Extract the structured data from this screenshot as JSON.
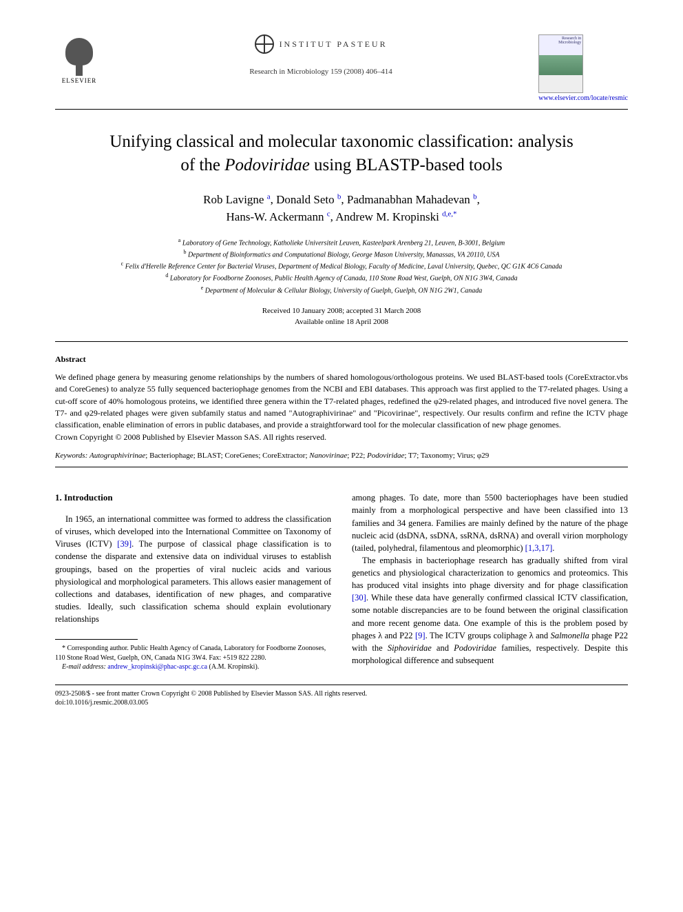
{
  "header": {
    "elsevier_label": "ELSEVIER",
    "pasteur_label": "INSTITUT PASTEUR",
    "journal_ref": "Research in Microbiology 159 (2008) 406–414",
    "journal_cover_title": "Research in Microbiology",
    "journal_link": "www.elsevier.com/locate/resmic"
  },
  "title": {
    "line1": "Unifying classical and molecular taxonomic classification: analysis",
    "line2_pre": "of the ",
    "line2_ital": "Podoviridae",
    "line2_post": " using BLASTP-based tools"
  },
  "authors": [
    {
      "name": "Rob Lavigne",
      "sup": "a"
    },
    {
      "name": "Donald Seto",
      "sup": "b"
    },
    {
      "name": "Padmanabhan Mahadevan",
      "sup": "b"
    },
    {
      "name": "Hans-W. Ackermann",
      "sup": "c"
    },
    {
      "name": "Andrew M. Kropinski",
      "sup": "d,e,*"
    }
  ],
  "affiliations": [
    {
      "sup": "a",
      "text": "Laboratory of Gene Technology, Katholieke Universiteit Leuven, Kasteelpark Arenberg 21, Leuven, B-3001, Belgium"
    },
    {
      "sup": "b",
      "text": "Department of Bioinformatics and Computational Biology, George Mason University, Manassas, VA 20110, USA"
    },
    {
      "sup": "c",
      "text": "Felix d'Herelle Reference Center for Bacterial Viruses, Department of Medical Biology, Faculty of Medicine, Laval University, Quebec, QC G1K 4C6 Canada"
    },
    {
      "sup": "d",
      "text": "Laboratory for Foodborne Zoonoses, Public Health Agency of Canada, 110 Stone Road West, Guelph, ON N1G 3W4, Canada"
    },
    {
      "sup": "e",
      "text": "Department of Molecular & Cellular Biology, University of Guelph, Guelph, ON N1G 2W1, Canada"
    }
  ],
  "dates": {
    "received": "Received 10 January 2008; accepted 31 March 2008",
    "online": "Available online 18 April 2008"
  },
  "abstract": {
    "heading": "Abstract",
    "text": "We defined phage genera by measuring genome relationships by the numbers of shared homologous/orthologous proteins. We used BLAST-based tools (CoreExtractor.vbs and CoreGenes) to analyze 55 fully sequenced bacteriophage genomes from the NCBI and EBI databases. This approach was first applied to the T7-related phages. Using a cut-off score of 40% homologous proteins, we identified three genera within the T7-related phages, redefined the φ29-related phages, and introduced five novel genera. The T7- and φ29-related phages were given subfamily status and named \"Autographivirinae\" and \"Picovirinae\", respectively. Our results confirm and refine the ICTV phage classification, enable elimination of errors in public databases, and provide a straightforward tool for the molecular classification of new phage genomes.",
    "copyright": "Crown Copyright © 2008 Published by Elsevier Masson SAS. All rights reserved."
  },
  "keywords": {
    "label": "Keywords:",
    "items": "Autographivirinae; Bacteriophage; BLAST; CoreGenes; CoreExtractor; Nanovirinae; P22; Podoviridae; T7; Taxonomy; Virus; φ29",
    "italics": [
      "Autographivirinae",
      "Nanovirinae",
      "Podoviridae"
    ]
  },
  "body": {
    "section_heading": "1. Introduction",
    "col1_p1_pre": "In 1965, an international committee was formed to address the classification of viruses, which developed into the International Committee on Taxonomy of Viruses (ICTV) ",
    "col1_p1_ref": "[39]",
    "col1_p1_post": ". The purpose of classical phage classification is to condense the disparate and extensive data on individual viruses to establish groupings, based on the properties of viral nucleic acids and various physiological and morphological parameters. This allows easier management of collections and databases, identification of new phages, and comparative studies. Ideally, such classification schema should explain evolutionary relationships",
    "col2_p1_pre": "among phages. To date, more than 5500 bacteriophages have been studied mainly from a morphological perspective and have been classified into 13 families and 34 genera. Families are mainly defined by the nature of the phage nucleic acid (dsDNA, ssDNA, ssRNA, dsRNA) and overall virion morphology (tailed, polyhedral, filamentous and pleomorphic) ",
    "col2_p1_ref": "[1,3,17]",
    "col2_p1_post": ".",
    "col2_p2_pre": "The emphasis in bacteriophage research has gradually shifted from viral genetics and physiological characterization to genomics and proteomics. This has produced vital insights into phage diversity and for phage classification ",
    "col2_p2_ref1": "[30]",
    "col2_p2_mid": ". While these data have generally confirmed classical ICTV classification, some notable discrepancies are to be found between the original classification and more recent genome data. One example of this is the problem posed by phages λ and P22 ",
    "col2_p2_ref2": "[9]",
    "col2_p2_post_pre": ". The ICTV groups coliphage λ and ",
    "col2_p2_ital1": "Salmonella",
    "col2_p2_post_mid": " phage P22 with the ",
    "col2_p2_ital2": "Siphoviridae",
    "col2_p2_post_and": " and ",
    "col2_p2_ital3": "Podoviridae",
    "col2_p2_post_end": " families, respectively. Despite this morphological difference and subsequent"
  },
  "footnote": {
    "corr": "* Corresponding author. Public Health Agency of Canada, Laboratory for Foodborne Zoonoses, 110 Stone Road West, Guelph, ON, Canada N1G 3W4. Fax: +519 822 2280.",
    "email_label": "E-mail address:",
    "email": "andrew_kropinski@phac-aspc.gc.ca",
    "email_post": " (A.M. Kropinski)."
  },
  "footer": {
    "line1": "0923-2508/$ - see front matter Crown Copyright © 2008 Published by Elsevier Masson SAS. All rights reserved.",
    "line2": "doi:10.1016/j.resmic.2008.03.005"
  }
}
